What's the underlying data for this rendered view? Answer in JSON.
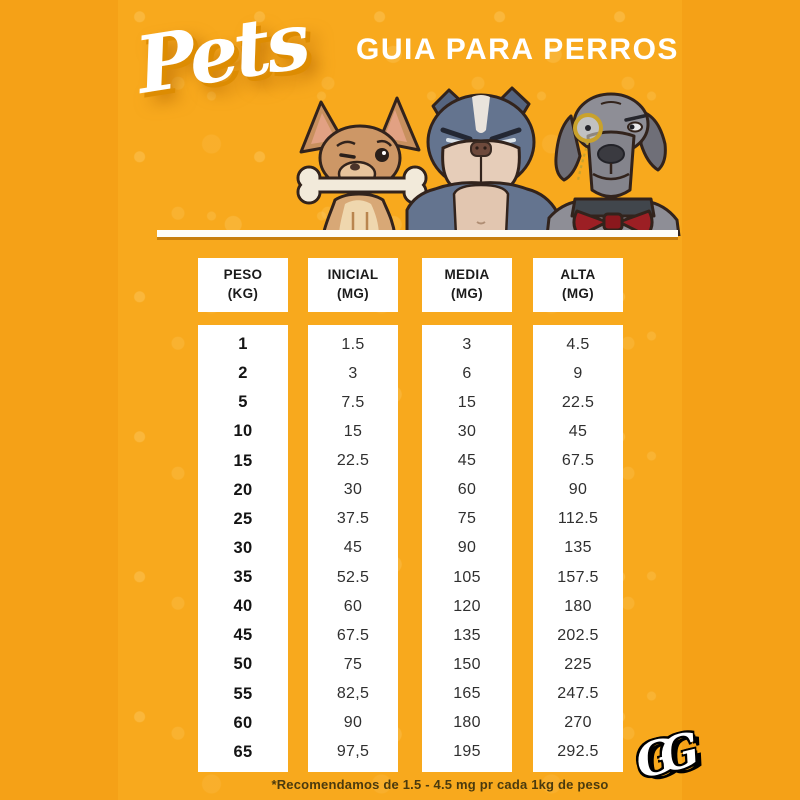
{
  "page": {
    "logo": "Pets",
    "heading": "GUIA PARA PERROS",
    "footnote": "*Recomendamos de 1.5 - 4.5 mg pr cada 1kg de peso",
    "watermark": "GG"
  },
  "illustrations": [
    {
      "name": "chihuahua-with-bone"
    },
    {
      "name": "grumpy-bulldog"
    },
    {
      "name": "great-dane-with-monocle-and-bowtie"
    }
  ],
  "table": {
    "columns": [
      {
        "title": "PESO",
        "unit": "(KG)"
      },
      {
        "title": "INICIAL",
        "unit": "(MG)"
      },
      {
        "title": "MEDIA",
        "unit": "(MG)"
      },
      {
        "title": "ALTA",
        "unit": "(MG)"
      }
    ],
    "rows": [
      [
        "1",
        "1.5",
        "3",
        "4.5"
      ],
      [
        "2",
        "3",
        "6",
        "9"
      ],
      [
        "5",
        "7.5",
        "15",
        "22.5"
      ],
      [
        "10",
        "15",
        "30",
        "45"
      ],
      [
        "15",
        "22.5",
        "45",
        "67.5"
      ],
      [
        "20",
        "30",
        "60",
        "90"
      ],
      [
        "25",
        "37.5",
        "75",
        "112.5"
      ],
      [
        "30",
        "45",
        "90",
        "135"
      ],
      [
        "35",
        "52.5",
        "105",
        "157.5"
      ],
      [
        "40",
        "60",
        "120",
        "180"
      ],
      [
        "45",
        "67.5",
        "135",
        "202.5"
      ],
      [
        "50",
        "75",
        "150",
        "225"
      ],
      [
        "55",
        "82,5",
        "165",
        "247.5"
      ],
      [
        "60",
        "90",
        "180",
        "270"
      ],
      [
        "65",
        "97,5",
        "195",
        "292.5"
      ]
    ]
  },
  "colors": {
    "background_outer": "#f5a117",
    "background_panel": "#f8a91d",
    "card_white": "#ffffff",
    "text_dark": "#1b1b1b",
    "logo_shadow_orange": "#dd8c02",
    "bulldog_slate": "#64748f",
    "chihuahua_tan": "#cd9766",
    "dane_gray": "#8e8e96",
    "bowtie_red": "#9c1f24",
    "monocle_gold": "#c9a22c",
    "footnote_brown": "#4a3a0e"
  }
}
